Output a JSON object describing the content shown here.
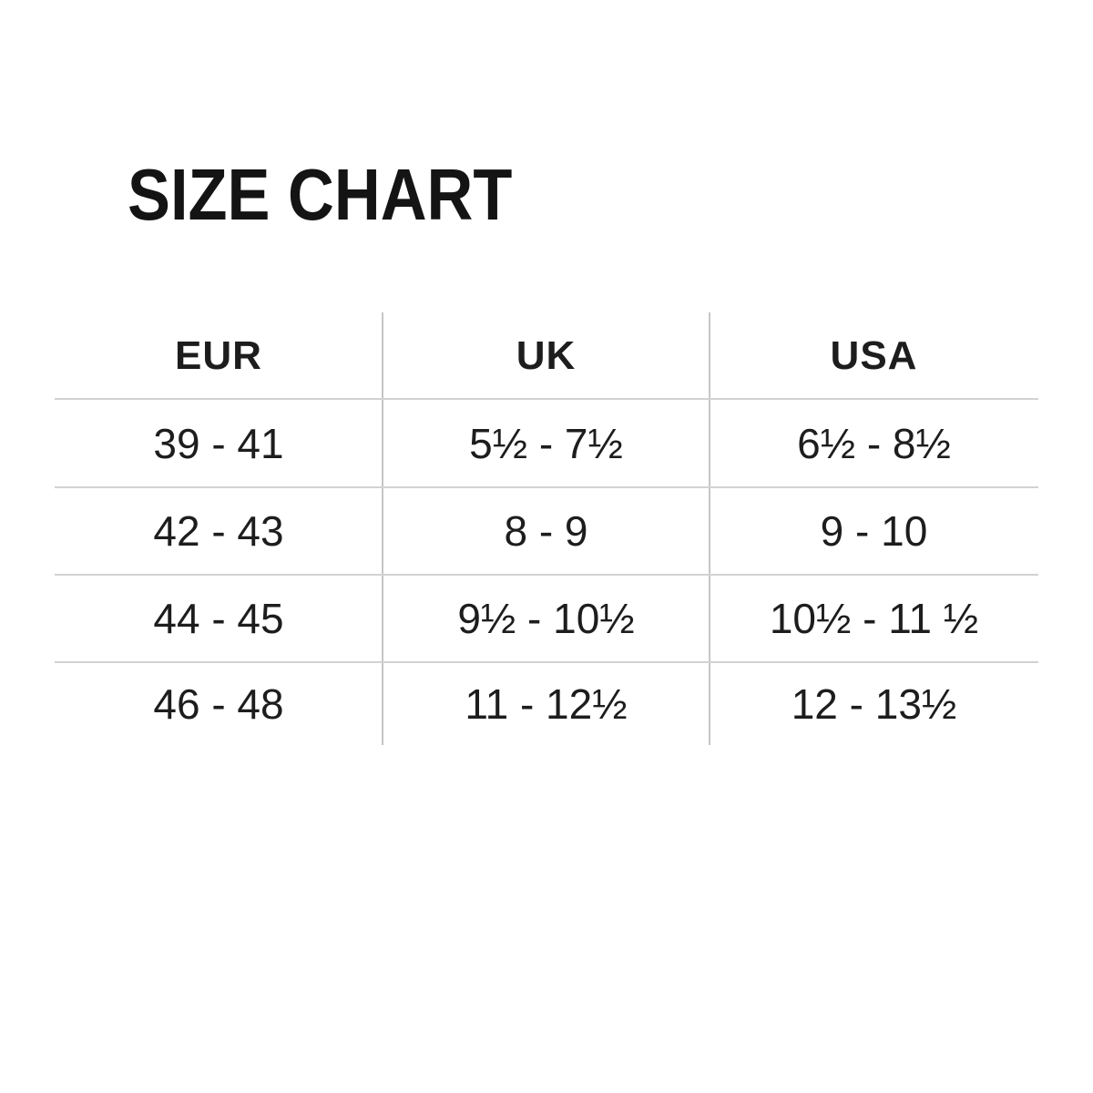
{
  "chart_data": {
    "type": "table",
    "title": "SIZE CHART",
    "columns": [
      "EUR",
      "UK",
      "USA"
    ],
    "rows": [
      [
        "39 - 41",
        "5½ - 7½",
        "6½ - 8½"
      ],
      [
        "42 - 43",
        "8 - 9",
        "9 - 10"
      ],
      [
        "44 - 45",
        "9½ - 10½",
        "10½ - 11 ½"
      ],
      [
        "46 - 48",
        "11 - 12½",
        "12 - 13½"
      ]
    ],
    "layout_hints": {
      "grid": "horizontal rules between rows, vertical rules between columns, no outer border",
      "alignment": "center"
    }
  },
  "colors": {
    "background": "#ffffff",
    "title": "#141414",
    "text": "#1d1d1d",
    "line_horizontal": "#d2d2d2",
    "line_vertical": "#c6c6c6"
  }
}
